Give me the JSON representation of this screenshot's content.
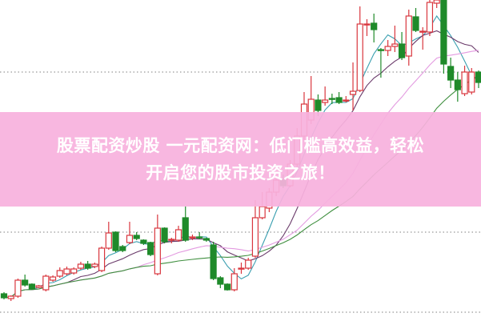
{
  "banner": {
    "line1": "股票配资炒股 一元配资网：低门槛高效益，轻松",
    "line2": "开启您的股市投资之旅！"
  },
  "chart_data": {
    "type": "candlestick",
    "title": "",
    "xlabel": "",
    "ylabel": "",
    "grid": "horizontal dotted",
    "colors": {
      "up": "#d9363e",
      "down": "#1f8a2a",
      "ma5": "#3a9fb0",
      "ma10": "#6a3a6a",
      "ma20": "#e39ae0",
      "ma30": "#3f8f3f",
      "grid": "#999999",
      "banner": "#f8b2de"
    },
    "moving_averages": [
      5,
      10,
      20,
      30
    ],
    "gridlines": [
      310,
      110,
      10
    ],
    "candles_ohlc": [
      [
        33,
        35,
        26,
        28
      ],
      [
        27,
        31,
        24,
        30
      ],
      [
        30,
        52,
        28,
        50
      ],
      [
        50,
        57,
        42,
        44
      ],
      [
        45,
        46,
        38,
        39
      ],
      [
        41,
        44,
        40,
        43
      ],
      [
        38,
        57,
        36,
        55
      ],
      [
        50,
        56,
        48,
        54
      ],
      [
        55,
        66,
        53,
        62
      ],
      [
        58,
        67,
        56,
        64
      ],
      [
        59,
        66,
        57,
        64
      ],
      [
        65,
        73,
        63,
        70
      ],
      [
        70,
        74,
        63,
        65
      ],
      [
        67,
        72,
        65,
        70
      ],
      [
        62,
        92,
        60,
        90
      ],
      [
        90,
        123,
        88,
        109
      ],
      [
        110,
        111,
        85,
        87
      ],
      [
        92,
        94,
        85,
        87
      ],
      [
        97,
        123,
        95,
        106
      ],
      [
        106,
        110,
        100,
        102
      ],
      [
        100,
        101,
        94,
        96
      ],
      [
        97,
        98,
        80,
        82
      ],
      [
        58,
        132,
        56,
        115
      ],
      [
        115,
        116,
        96,
        98
      ],
      [
        100,
        103,
        96,
        101
      ],
      [
        100,
        118,
        98,
        113
      ],
      [
        128,
        142,
        98,
        100
      ],
      [
        103,
        107,
        100,
        104
      ],
      [
        104,
        110,
        101,
        103
      ],
      [
        102,
        103,
        98,
        100
      ],
      [
        94,
        98,
        50,
        52
      ],
      [
        53,
        55,
        40,
        45
      ],
      [
        45,
        46,
        37,
        38
      ],
      [
        38,
        65,
        36,
        58
      ],
      [
        64,
        72,
        58,
        65
      ],
      [
        65,
        78,
        63,
        75
      ],
      [
        80,
        150,
        78,
        128
      ],
      [
        128,
        160,
        126,
        142
      ],
      [
        140,
        165,
        135,
        160
      ],
      [
        160,
        180,
        155,
        175
      ],
      [
        175,
        182,
        165,
        168
      ],
      [
        168,
        200,
        166,
        195
      ],
      [
        195,
        240,
        190,
        230
      ],
      [
        230,
        285,
        225,
        270
      ],
      [
        250,
        305,
        245,
        276
      ],
      [
        275,
        282,
        255,
        262
      ],
      [
        272,
        292,
        268,
        275
      ],
      [
        277,
        283,
        270,
        276
      ],
      [
        278,
        285,
        270,
        272
      ],
      [
        274,
        280,
        272,
        275
      ],
      [
        282,
        322,
        262,
        286
      ],
      [
        287,
        392,
        285,
        370
      ],
      [
        370,
        376,
        355,
        370
      ],
      [
        371,
        383,
        347,
        363
      ],
      [
        338,
        340,
        303,
        337
      ],
      [
        337,
        350,
        330,
        342
      ],
      [
        342,
        368,
        335,
        345
      ],
      [
        345,
        360,
        325,
        328
      ],
      [
        330,
        388,
        318,
        380
      ],
      [
        379,
        390,
        360,
        362
      ],
      [
        360,
        366,
        338,
        361
      ],
      [
        360,
        400,
        355,
        397
      ],
      [
        396,
        400,
        390,
        400
      ],
      [
        400,
        400,
        308,
        320
      ],
      [
        317,
        328,
        290,
        300
      ],
      [
        300,
        310,
        273,
        288
      ],
      [
        283,
        318,
        280,
        310
      ],
      [
        285,
        315,
        282,
        310
      ],
      [
        310,
        312,
        290,
        297
      ]
    ]
  }
}
